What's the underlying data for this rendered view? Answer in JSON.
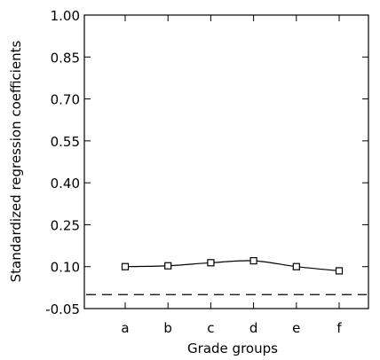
{
  "chart_data": {
    "type": "line",
    "title": "",
    "xlabel": "Grade groups",
    "ylabel": "Standardized regression coefficients",
    "categories": [
      "a",
      "b",
      "c",
      "d",
      "e",
      "f"
    ],
    "y_ticks": [
      "1.00",
      "0.85",
      "0.70",
      "0.55",
      "0.40",
      "0.25",
      "0.10",
      "-0.05"
    ],
    "ylim": [
      -0.05,
      1.0
    ],
    "series": [
      {
        "values": [
          0.1,
          0.103,
          0.114,
          0.121,
          0.1,
          0.085
        ]
      }
    ],
    "reference_line": {
      "y": 0.0,
      "style": "dashed"
    },
    "grid": false,
    "marker": "open-square",
    "line_smoothing": "smooth-curve"
  }
}
